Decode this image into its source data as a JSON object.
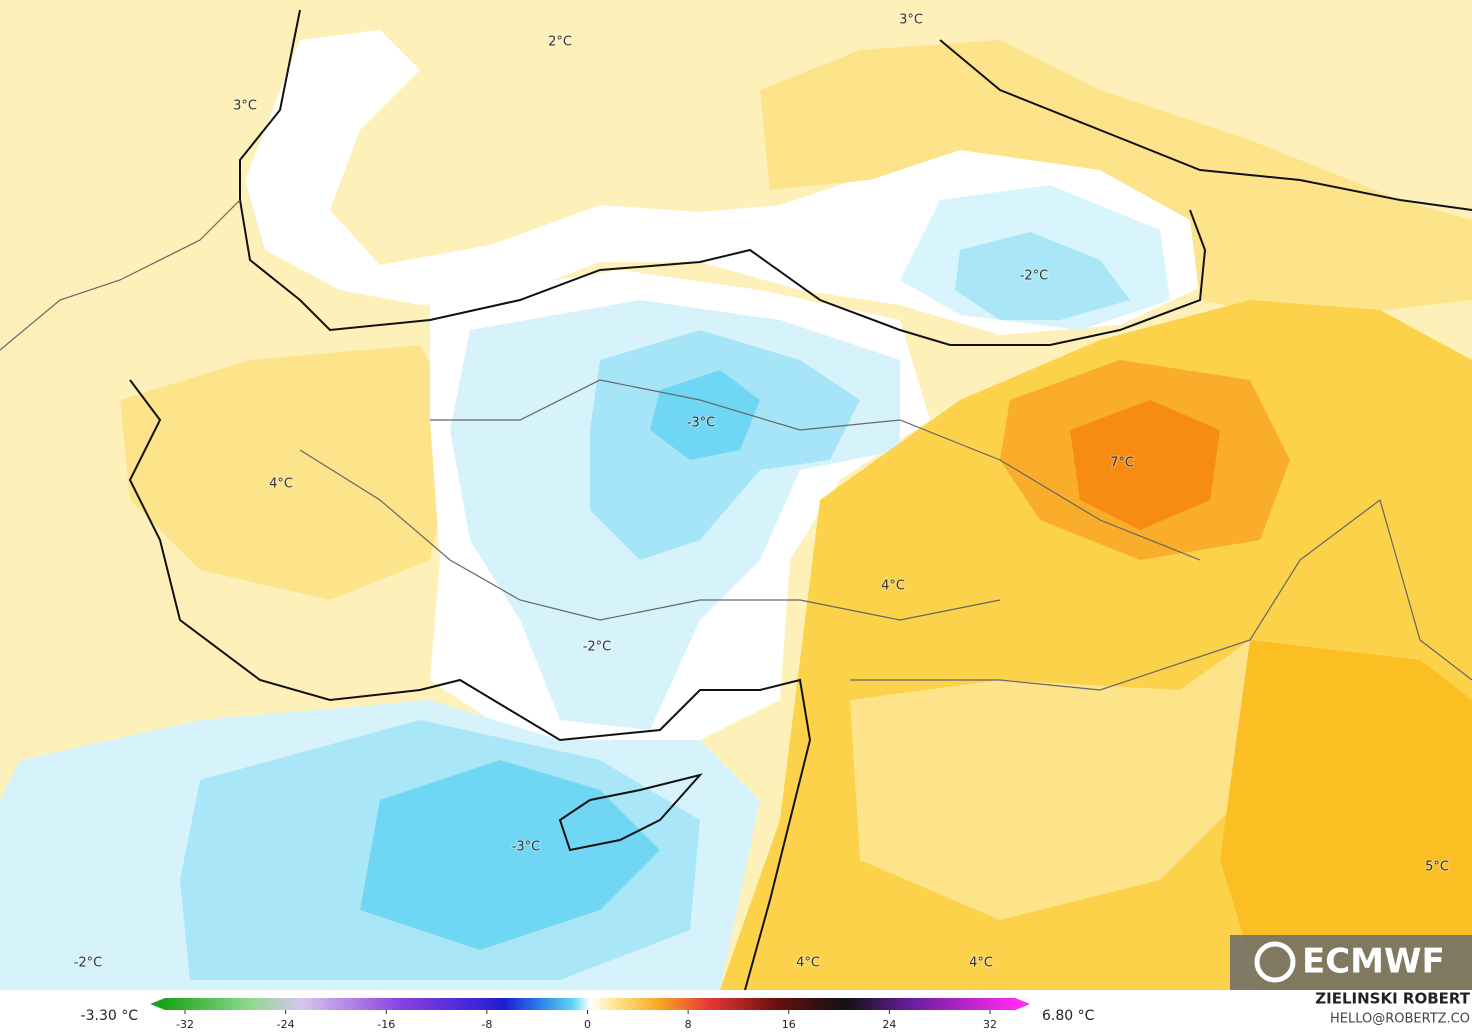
{
  "map": {
    "labels": [
      "2°C",
      "3°C",
      "3°C",
      "-2°C",
      "-3°C",
      "4°C",
      "7°C",
      "4°C",
      "-2°C",
      "-3°C",
      "5°C",
      "-2°C",
      "4°C",
      "4°C"
    ]
  },
  "colorbar": {
    "min_label": "-3.30 °C",
    "max_label": "6.80 °C",
    "ticks": [
      -32,
      -24,
      -16,
      -8,
      0,
      8,
      16,
      24,
      32
    ]
  },
  "credit": {
    "author": "ZIELINSKI ROBERT",
    "contact": "HELLO@ROBERTZ.CO",
    "logo": "ECMWF"
  }
}
